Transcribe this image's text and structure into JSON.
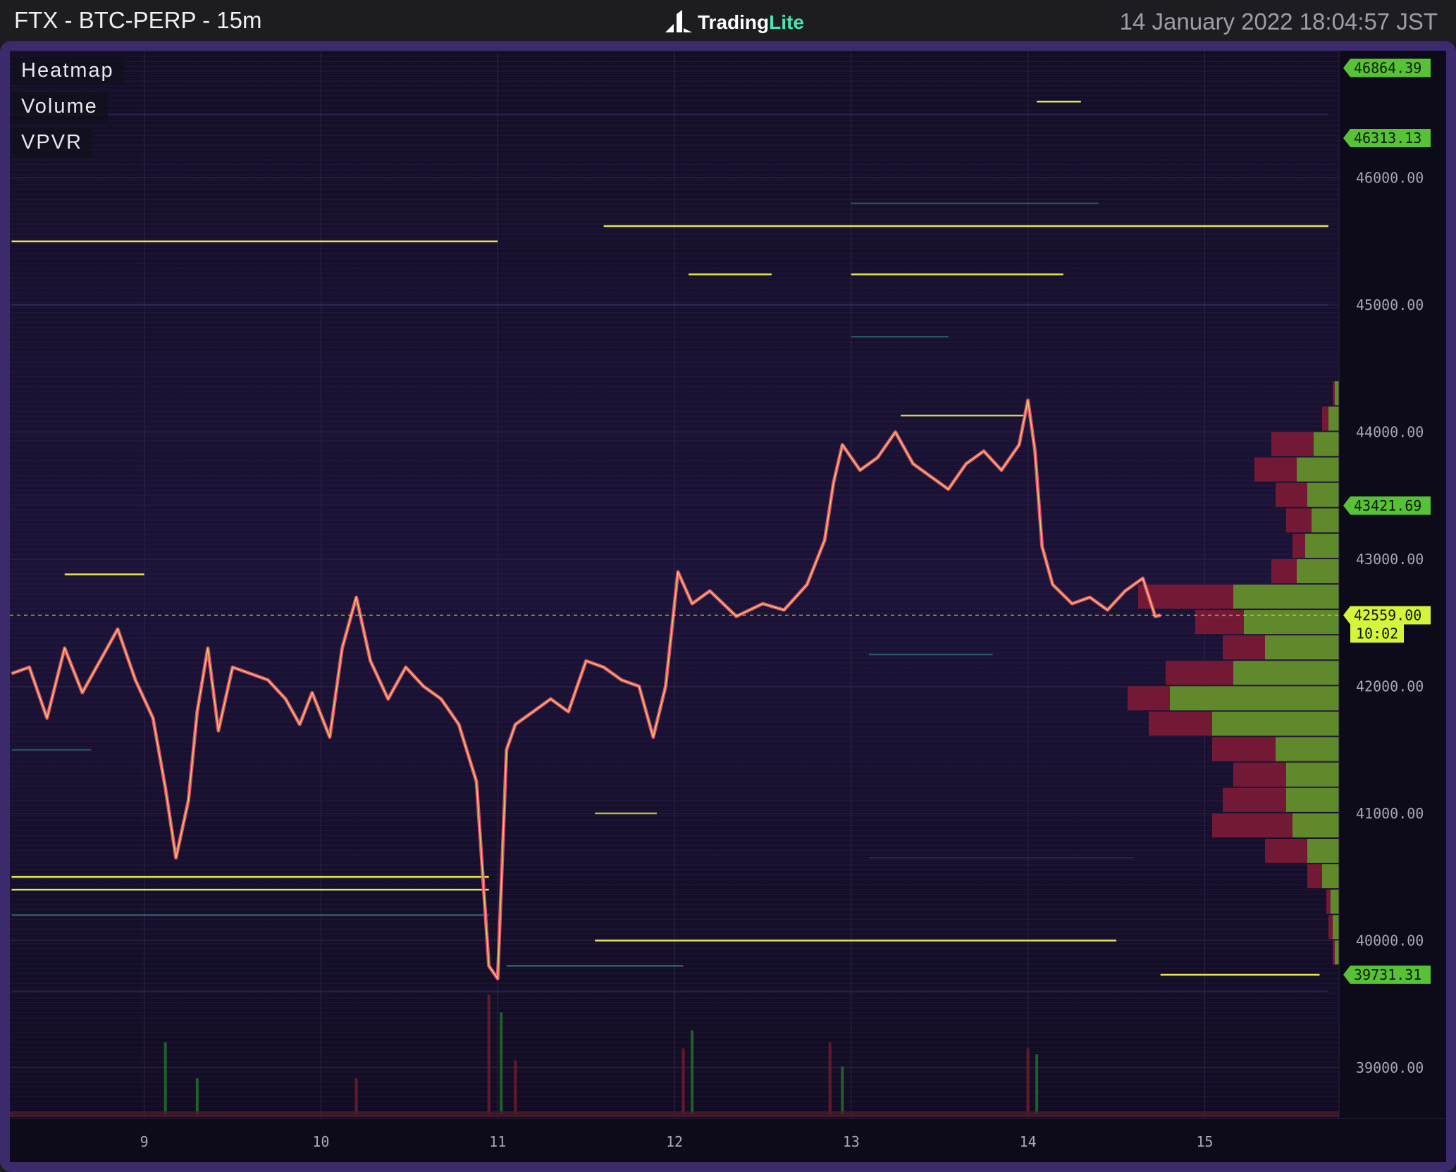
{
  "header": {
    "title": "FTX - BTC-PERP - 15m",
    "brand_main": "Trading",
    "brand_accent": "Lite",
    "timestamp": "14 January 2022 18:04:57 JST"
  },
  "legend": {
    "items": [
      "Heatmap",
      "Volume",
      "VPVR"
    ]
  },
  "colors": {
    "background": "#0d0a1a",
    "frame": "#3b2a6c",
    "candle": "#e8556e",
    "candle_highlight": "#e6f06a",
    "tag_green": "#57c236",
    "tag_current": "#d4f53c",
    "vpvr_buy": "#5f8f2c",
    "vpvr_sell": "#7d1b36",
    "liquidity_bright": "#e8e650",
    "liquidity_teal": "#3aa6a0"
  },
  "chart_data": {
    "type": "heatmap",
    "symbol": "BTC-PERP",
    "exchange": "FTX",
    "timeframe": "15m",
    "xlim": [
      8.24,
      15.76
    ],
    "ylim": [
      38600,
      47000
    ],
    "x_ticks": [
      "9",
      "10",
      "11",
      "12",
      "13",
      "14",
      "15"
    ],
    "y_ticks": [
      "39000.00",
      "40000.00",
      "41000.00",
      "42000.00",
      "43000.00",
      "44000.00",
      "45000.00",
      "46000.00"
    ],
    "current_price": "42559.00",
    "countdown": "10:02",
    "price_tags": [
      "46864.39",
      "46313.13",
      "43421.69",
      "39731.31"
    ],
    "price_path": [
      [
        8.25,
        42100
      ],
      [
        8.35,
        42150
      ],
      [
        8.45,
        41750
      ],
      [
        8.55,
        42300
      ],
      [
        8.65,
        41950
      ],
      [
        8.75,
        42200
      ],
      [
        8.85,
        42450
      ],
      [
        8.95,
        42050
      ],
      [
        9.05,
        41750
      ],
      [
        9.12,
        41200
      ],
      [
        9.18,
        40650
      ],
      [
        9.25,
        41100
      ],
      [
        9.3,
        41800
      ],
      [
        9.36,
        42300
      ],
      [
        9.42,
        41650
      ],
      [
        9.5,
        42150
      ],
      [
        9.6,
        42100
      ],
      [
        9.7,
        42050
      ],
      [
        9.8,
        41900
      ],
      [
        9.88,
        41700
      ],
      [
        9.95,
        41950
      ],
      [
        10.05,
        41600
      ],
      [
        10.12,
        42300
      ],
      [
        10.2,
        42700
      ],
      [
        10.28,
        42200
      ],
      [
        10.38,
        41900
      ],
      [
        10.48,
        42150
      ],
      [
        10.58,
        42000
      ],
      [
        10.68,
        41900
      ],
      [
        10.78,
        41700
      ],
      [
        10.88,
        41250
      ],
      [
        10.95,
        39800
      ],
      [
        11.0,
        39700
      ],
      [
        11.05,
        41500
      ],
      [
        11.1,
        41700
      ],
      [
        11.2,
        41800
      ],
      [
        11.3,
        41900
      ],
      [
        11.4,
        41800
      ],
      [
        11.5,
        42200
      ],
      [
        11.6,
        42150
      ],
      [
        11.7,
        42050
      ],
      [
        11.8,
        42000
      ],
      [
        11.88,
        41600
      ],
      [
        11.95,
        42000
      ],
      [
        12.02,
        42900
      ],
      [
        12.1,
        42650
      ],
      [
        12.2,
        42750
      ],
      [
        12.35,
        42550
      ],
      [
        12.5,
        42650
      ],
      [
        12.62,
        42600
      ],
      [
        12.75,
        42800
      ],
      [
        12.85,
        43150
      ],
      [
        12.9,
        43600
      ],
      [
        12.95,
        43900
      ],
      [
        13.05,
        43700
      ],
      [
        13.15,
        43800
      ],
      [
        13.25,
        44000
      ],
      [
        13.35,
        43750
      ],
      [
        13.45,
        43650
      ],
      [
        13.55,
        43550
      ],
      [
        13.65,
        43750
      ],
      [
        13.75,
        43850
      ],
      [
        13.85,
        43700
      ],
      [
        13.95,
        43900
      ],
      [
        14.0,
        44250
      ],
      [
        14.04,
        43850
      ],
      [
        14.08,
        43100
      ],
      [
        14.14,
        42800
      ],
      [
        14.25,
        42650
      ],
      [
        14.35,
        42700
      ],
      [
        14.45,
        42600
      ],
      [
        14.55,
        42750
      ],
      [
        14.65,
        42850
      ],
      [
        14.72,
        42550
      ],
      [
        14.75,
        42559
      ]
    ],
    "liquidity_levels": [
      {
        "price": 45500,
        "x_start": 8.25,
        "x_end": 11.0,
        "strength": 1
      },
      {
        "price": 45620,
        "x_start": 11.6,
        "x_end": 15.7,
        "strength": 1
      },
      {
        "price": 45240,
        "x_start": 12.08,
        "x_end": 12.55,
        "strength": 1
      },
      {
        "price": 45240,
        "x_start": 13.0,
        "x_end": 14.2,
        "strength": 1
      },
      {
        "price": 42880,
        "x_start": 8.55,
        "x_end": 9.0,
        "strength": 1
      },
      {
        "price": 40500,
        "x_start": 8.25,
        "x_end": 10.95,
        "strength": 1
      },
      {
        "price": 40400,
        "x_start": 8.25,
        "x_end": 10.95,
        "strength": 1
      },
      {
        "price": 40200,
        "x_start": 8.25,
        "x_end": 10.95,
        "strength": 0.6
      },
      {
        "price": 40000,
        "x_start": 11.55,
        "x_end": 14.5,
        "strength": 1
      },
      {
        "price": 39800,
        "x_start": 11.05,
        "x_end": 12.05,
        "strength": 0.7
      },
      {
        "price": 39730,
        "x_start": 14.75,
        "x_end": 15.65,
        "strength": 1
      },
      {
        "price": 44130,
        "x_start": 13.28,
        "x_end": 13.98,
        "strength": 0.9
      },
      {
        "price": 46600,
        "x_start": 14.05,
        "x_end": 14.3,
        "strength": 1
      },
      {
        "price": 41000,
        "x_start": 11.55,
        "x_end": 11.9,
        "strength": 0.8
      },
      {
        "price": 41500,
        "x_start": 8.25,
        "x_end": 8.7,
        "strength": 0.5
      },
      {
        "price": 45000,
        "x_start": 8.25,
        "x_end": 15.7,
        "strength": 0.3
      },
      {
        "price": 46500,
        "x_start": 8.25,
        "x_end": 15.7,
        "strength": 0.25
      },
      {
        "price": 45800,
        "x_start": 13.0,
        "x_end": 14.4,
        "strength": 0.5
      },
      {
        "price": 42250,
        "x_start": 13.1,
        "x_end": 13.8,
        "strength": 0.5
      },
      {
        "price": 44750,
        "x_start": 13.0,
        "x_end": 13.55,
        "strength": 0.5
      },
      {
        "price": 40650,
        "x_start": 13.1,
        "x_end": 14.6,
        "strength": 0.45
      },
      {
        "price": 39600,
        "x_start": 8.25,
        "x_end": 15.7,
        "strength": 0.35
      }
    ],
    "vpvr_profile": [
      {
        "price": 44300,
        "buy": 0.02,
        "sell": 0.03
      },
      {
        "price": 44100,
        "buy": 0.05,
        "sell": 0.08
      },
      {
        "price": 43900,
        "buy": 0.12,
        "sell": 0.32
      },
      {
        "price": 43700,
        "buy": 0.2,
        "sell": 0.4
      },
      {
        "price": 43500,
        "buy": 0.15,
        "sell": 0.3
      },
      {
        "price": 43300,
        "buy": 0.13,
        "sell": 0.25
      },
      {
        "price": 43100,
        "buy": 0.16,
        "sell": 0.22
      },
      {
        "price": 42900,
        "buy": 0.2,
        "sell": 0.32
      },
      {
        "price": 42700,
        "buy": 0.5,
        "sell": 0.95
      },
      {
        "price": 42500,
        "buy": 0.45,
        "sell": 0.68
      },
      {
        "price": 42300,
        "buy": 0.35,
        "sell": 0.55
      },
      {
        "price": 42100,
        "buy": 0.5,
        "sell": 0.82
      },
      {
        "price": 41900,
        "buy": 0.8,
        "sell": 1.0
      },
      {
        "price": 41700,
        "buy": 0.6,
        "sell": 0.9
      },
      {
        "price": 41500,
        "buy": 0.3,
        "sell": 0.6
      },
      {
        "price": 41300,
        "buy": 0.25,
        "sell": 0.5
      },
      {
        "price": 41100,
        "buy": 0.25,
        "sell": 0.55
      },
      {
        "price": 40900,
        "buy": 0.22,
        "sell": 0.6
      },
      {
        "price": 40700,
        "buy": 0.15,
        "sell": 0.35
      },
      {
        "price": 40500,
        "buy": 0.08,
        "sell": 0.15
      },
      {
        "price": 40300,
        "buy": 0.04,
        "sell": 0.06
      },
      {
        "price": 40100,
        "buy": 0.03,
        "sell": 0.05
      },
      {
        "price": 39900,
        "buy": 0.02,
        "sell": 0.03
      }
    ],
    "volume_spikes": [
      {
        "x": 9.12,
        "v": 0.6
      },
      {
        "x": 10.95,
        "v": 1.0
      },
      {
        "x": 11.02,
        "v": 0.85
      },
      {
        "x": 12.05,
        "v": 0.55
      },
      {
        "x": 12.1,
        "v": 0.7
      },
      {
        "x": 12.88,
        "v": 0.6
      },
      {
        "x": 12.95,
        "v": 0.4
      },
      {
        "x": 14.0,
        "v": 0.55
      },
      {
        "x": 14.05,
        "v": 0.5
      },
      {
        "x": 11.1,
        "v": 0.45
      },
      {
        "x": 9.3,
        "v": 0.3
      },
      {
        "x": 10.2,
        "v": 0.3
      }
    ]
  }
}
